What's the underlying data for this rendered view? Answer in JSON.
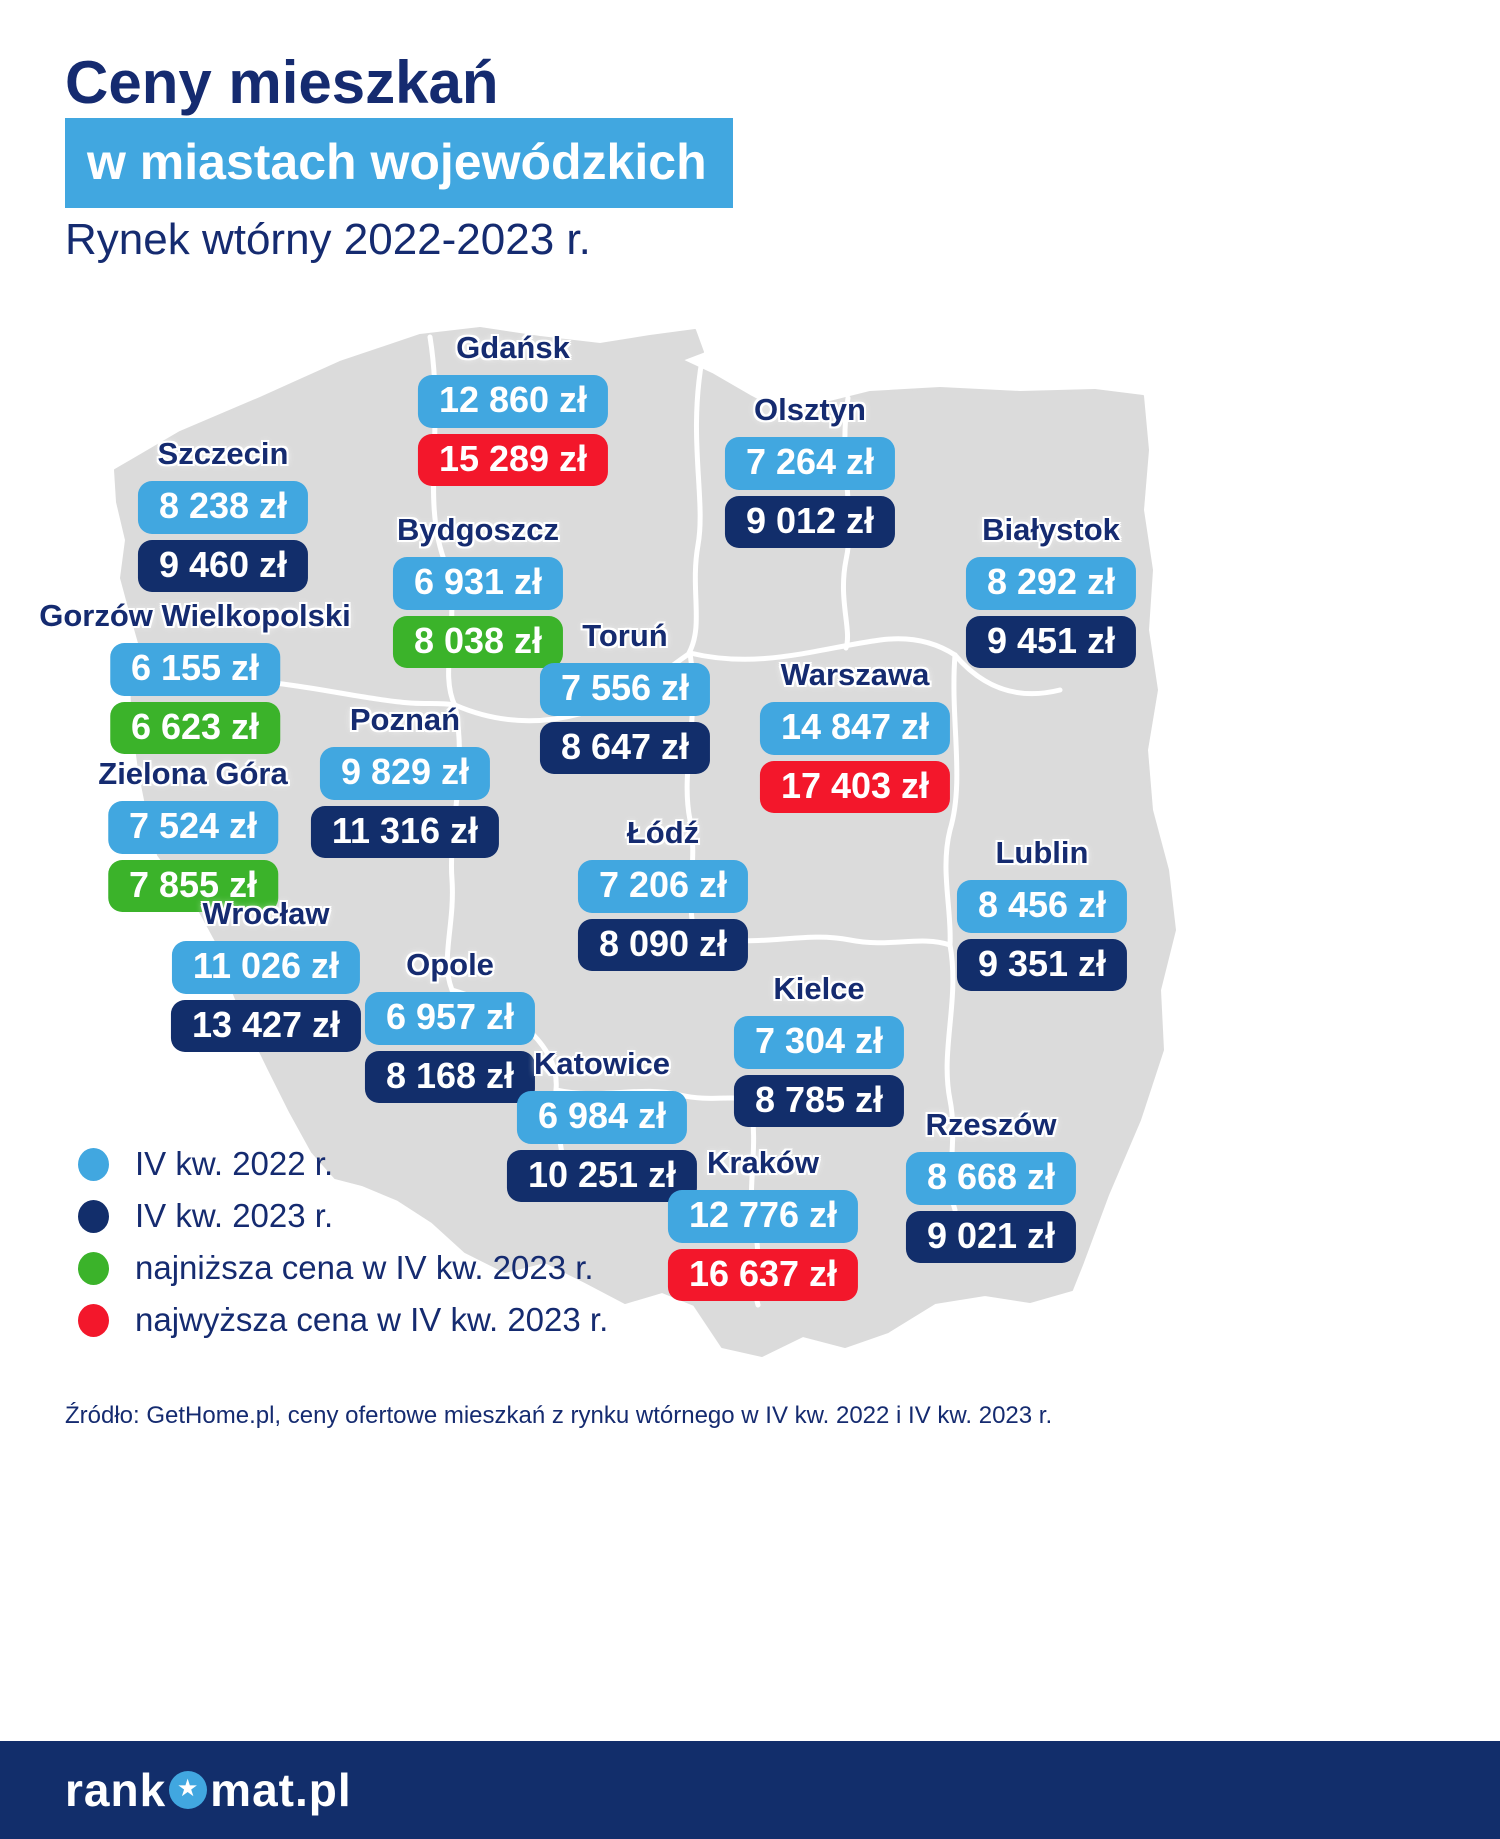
{
  "header": {
    "title": "Ceny mieszkań",
    "subtitle": "w miastach wojewódzkich",
    "period": "Rynek wtórny 2022-2023 r."
  },
  "colors": {
    "q4_2022": "#41A7E0",
    "q4_2023": "#122E6B",
    "lowest": "#3BB32A",
    "highest": "#F3172B",
    "title_navy": "#152B70",
    "map_fill": "#DBDBDB",
    "map_border": "#FFFFFF",
    "footer_bg": "#122E6B",
    "background": "#FFFFFF"
  },
  "chart_data": {
    "type": "table",
    "layout": "poland-map-infographic",
    "title": "Ceny mieszkań w miastach wojewódzkich",
    "subtitle": "Rynek wtórny 2022-2023 r.",
    "series": [
      "IV kw. 2022 r.",
      "IV kw. 2023 r."
    ],
    "highlights": {
      "lowest_2023": [
        "Gorzów Wielkopolski",
        "Zielona Góra",
        "Bydgoszcz"
      ],
      "highest_2023": [
        "Gdańsk",
        "Warszawa",
        "Kraków"
      ]
    },
    "cities": [
      {
        "id": "gdansk",
        "name": "Gdańsk",
        "q4_2022": "12 860 zł",
        "q4_2023": "15 289 zł",
        "q4_2022_value": 12860,
        "q4_2023_value": 15289,
        "color_2023": "highest"
      },
      {
        "id": "olsztyn",
        "name": "Olsztyn",
        "q4_2022": "7 264 zł",
        "q4_2023": "9 012 zł",
        "q4_2022_value": 7264,
        "q4_2023_value": 9012,
        "color_2023": "q4_2023"
      },
      {
        "id": "szczecin",
        "name": "Szczecin",
        "q4_2022": "8 238 zł",
        "q4_2023": "9 460 zł",
        "q4_2022_value": 8238,
        "q4_2023_value": 9460,
        "color_2023": "q4_2023"
      },
      {
        "id": "bialystok",
        "name": "Białystok",
        "q4_2022": "8 292 zł",
        "q4_2023": "9 451 zł",
        "q4_2022_value": 8292,
        "q4_2023_value": 9451,
        "color_2023": "q4_2023"
      },
      {
        "id": "bydgoszcz",
        "name": "Bydgoszcz",
        "q4_2022": "6 931 zł",
        "q4_2023": "8 038 zł",
        "q4_2022_value": 6931,
        "q4_2023_value": 8038,
        "color_2023": "lowest"
      },
      {
        "id": "gorzow",
        "name": "Gorzów Wielkopolski",
        "q4_2022": "6 155 zł",
        "q4_2023": "6 623 zł",
        "q4_2022_value": 6155,
        "q4_2023_value": 6623,
        "color_2023": "lowest"
      },
      {
        "id": "torun",
        "name": "Toruń",
        "q4_2022": "7 556 zł",
        "q4_2023": "8 647 zł",
        "q4_2022_value": 7556,
        "q4_2023_value": 8647,
        "color_2023": "q4_2023"
      },
      {
        "id": "warszawa",
        "name": "Warszawa",
        "q4_2022": "14 847 zł",
        "q4_2023": "17 403 zł",
        "q4_2022_value": 14847,
        "q4_2023_value": 17403,
        "color_2023": "highest"
      },
      {
        "id": "poznan",
        "name": "Poznań",
        "q4_2022": "9 829 zł",
        "q4_2023": "11 316 zł",
        "q4_2022_value": 9829,
        "q4_2023_value": 11316,
        "color_2023": "q4_2023"
      },
      {
        "id": "zielonagora",
        "name": "Zielona Góra",
        "q4_2022": "7 524 zł",
        "q4_2023": "7 855 zł",
        "q4_2022_value": 7524,
        "q4_2023_value": 7855,
        "color_2023": "lowest"
      },
      {
        "id": "lodz",
        "name": "Łódź",
        "q4_2022": "7 206 zł",
        "q4_2023": "8 090 zł",
        "q4_2022_value": 7206,
        "q4_2023_value": 8090,
        "color_2023": "q4_2023"
      },
      {
        "id": "lublin",
        "name": "Lublin",
        "q4_2022": "8 456 zł",
        "q4_2023": "9 351 zł",
        "q4_2022_value": 8456,
        "q4_2023_value": 9351,
        "color_2023": "q4_2023"
      },
      {
        "id": "wroclaw",
        "name": "Wrocław",
        "q4_2022": "11 026 zł",
        "q4_2023": "13 427 zł",
        "q4_2022_value": 11026,
        "q4_2023_value": 13427,
        "color_2023": "q4_2023"
      },
      {
        "id": "opole",
        "name": "Opole",
        "q4_2022": "6 957 zł",
        "q4_2023": "8 168 zł",
        "q4_2022_value": 6957,
        "q4_2023_value": 8168,
        "color_2023": "q4_2023"
      },
      {
        "id": "kielce",
        "name": "Kielce",
        "q4_2022": "7 304 zł",
        "q4_2023": "8 785 zł",
        "q4_2022_value": 7304,
        "q4_2023_value": 8785,
        "color_2023": "q4_2023"
      },
      {
        "id": "katowice",
        "name": "Katowice",
        "q4_2022": "6 984 zł",
        "q4_2023": "10 251 zł",
        "q4_2022_value": 6984,
        "q4_2023_value": 10251,
        "color_2023": "q4_2023"
      },
      {
        "id": "rzeszow",
        "name": "Rzeszów",
        "q4_2022": "8 668 zł",
        "q4_2023": "9 021 zł",
        "q4_2022_value": 8668,
        "q4_2023_value": 9021,
        "color_2023": "q4_2023"
      },
      {
        "id": "krakow",
        "name": "Kraków",
        "q4_2022": "12 776 zł",
        "q4_2023": "16 637 zł",
        "q4_2022_value": 12776,
        "q4_2023_value": 16637,
        "color_2023": "highest"
      }
    ]
  },
  "legend": {
    "items": [
      {
        "label": "IV kw. 2022 r.",
        "color_key": "q4_2022"
      },
      {
        "label": "IV kw. 2023 r.",
        "color_key": "q4_2023"
      },
      {
        "label": "najniższa cena w IV kw. 2023 r.",
        "color_key": "lowest"
      },
      {
        "label": "najwyższa cena w IV kw. 2023 r.",
        "color_key": "highest"
      }
    ]
  },
  "source": "Źródło: GetHome.pl, ceny ofertowe mieszkań z rynku wtórnego w IV kw. 2022 i IV kw. 2023 r.",
  "footer": {
    "logo_left": "rank",
    "logo_right": "mat.pl",
    "logo_full": "rankomat.pl"
  }
}
